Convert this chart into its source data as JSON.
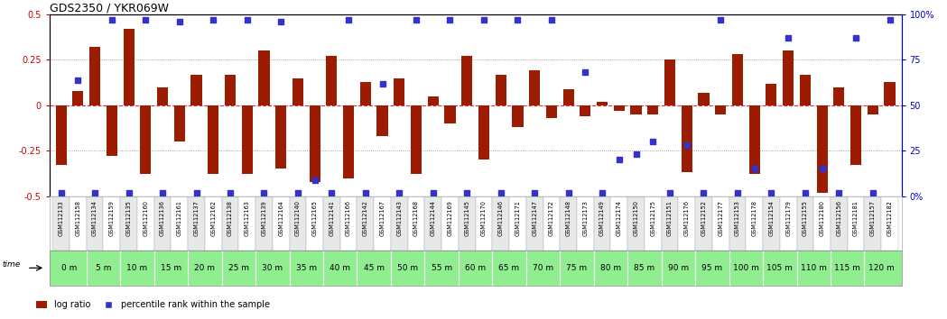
{
  "title": "GDS2350 / YKR069W",
  "gsm_labels": [
    "GSM112133",
    "GSM112158",
    "GSM112134",
    "GSM112159",
    "GSM112135",
    "GSM112160",
    "GSM112136",
    "GSM112161",
    "GSM112137",
    "GSM112162",
    "GSM112138",
    "GSM112163",
    "GSM112139",
    "GSM112164",
    "GSM112140",
    "GSM112165",
    "GSM112141",
    "GSM112166",
    "GSM112142",
    "GSM112167",
    "GSM112143",
    "GSM112168",
    "GSM112144",
    "GSM112169",
    "GSM112145",
    "GSM112170",
    "GSM112146",
    "GSM112171",
    "GSM112147",
    "GSM112172",
    "GSM112148",
    "GSM112173",
    "GSM112149",
    "GSM112174",
    "GSM112150",
    "GSM112175",
    "GSM112151",
    "GSM112176",
    "GSM112152",
    "GSM112177",
    "GSM112153",
    "GSM112178",
    "GSM112154",
    "GSM112179",
    "GSM112155",
    "GSM112180",
    "GSM112156",
    "GSM112181",
    "GSM112157",
    "GSM112182"
  ],
  "time_labels": [
    "0 m",
    "5 m",
    "10 m",
    "15 m",
    "20 m",
    "25 m",
    "30 m",
    "35 m",
    "40 m",
    "45 m",
    "50 m",
    "55 m",
    "60 m",
    "65 m",
    "70 m",
    "75 m",
    "80 m",
    "85 m",
    "90 m",
    "95 m",
    "100 m",
    "105 m",
    "110 m",
    "115 m",
    "120 m"
  ],
  "log_ratio": [
    -0.33,
    0.08,
    0.32,
    -0.28,
    0.42,
    -0.38,
    0.1,
    -0.2,
    0.17,
    -0.38,
    0.17,
    -0.38,
    0.3,
    -0.35,
    0.15,
    -0.42,
    0.27,
    -0.4,
    0.13,
    -0.17,
    0.15,
    -0.38,
    0.05,
    -0.1,
    0.27,
    -0.3,
    0.17,
    -0.12,
    0.19,
    -0.07,
    0.09,
    -0.06,
    0.02,
    -0.03,
    -0.05,
    -0.05,
    0.25,
    -0.37,
    0.07,
    -0.05,
    0.28,
    -0.38,
    0.12,
    0.3,
    0.17,
    -0.48,
    0.1,
    -0.33,
    -0.05,
    0.13
  ],
  "percentile": [
    2,
    64,
    2,
    97,
    2,
    97,
    2,
    96,
    2,
    97,
    2,
    97,
    2,
    96,
    2,
    9,
    2,
    97,
    2,
    62,
    2,
    97,
    2,
    97,
    2,
    97,
    2,
    97,
    2,
    97,
    2,
    68,
    2,
    20,
    23,
    30,
    2,
    28,
    2,
    97,
    2,
    15,
    2,
    87,
    2,
    15,
    2,
    87,
    2,
    97
  ],
  "ylim_left": [
    -0.5,
    0.5
  ],
  "bar_color": "#9B1C00",
  "dot_color": "#3333CC",
  "title_fontsize": 9,
  "time_row_color": "#90EE90",
  "gsm_row_colors": [
    "#E8E8E8",
    "#FFFFFF"
  ],
  "left_axis_color": "#CC0000",
  "right_axis_color": "#0000CC",
  "dotted_line_color": "#888888",
  "zero_line_color": "#CC0000"
}
